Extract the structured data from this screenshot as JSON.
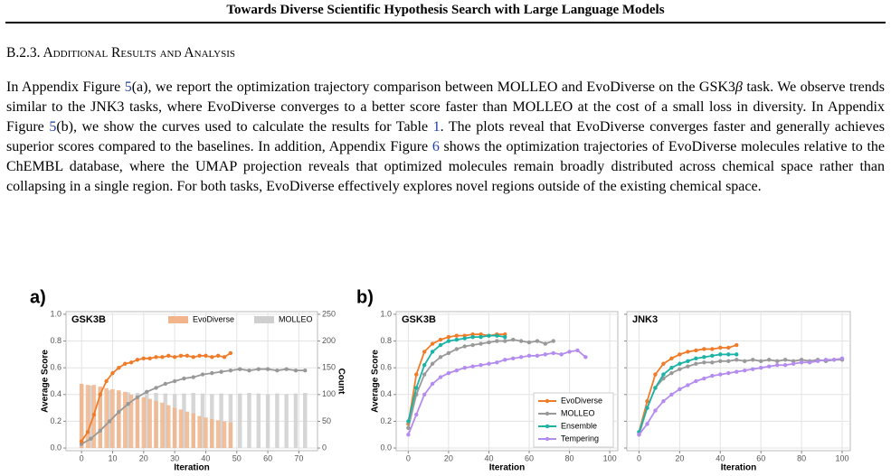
{
  "header": {
    "title": "Towards Diverse Scientific Hypothesis Search with Large Language Models"
  },
  "section": {
    "heading": "B.2.3. Additional Results and Analysis",
    "paragraph": [
      "In Appendix Figure ",
      "5",
      "(a), we report the optimization trajectory comparison between MOLLEO and EvoDiverse on the GSK3",
      "β",
      " task. We observe trends similar to the JNK3 tasks, where EvoDiverse converges to a better score faster than MOLLEO at the cost of a small loss in diversity. In Appendix Figure ",
      "5",
      "(b), we show the curves used to calculate the results for Table ",
      "1",
      ". The plots reveal that EvoDiverse converges faster and generally achieves superior scores compared to the baselines. In addition, Appendix Figure ",
      "6",
      " shows the optimization trajectories of EvoDiverse molecules relative to the ChEMBL database, where the UMAP projection reveals that optimized molecules remain broadly distributed across chemical space rather than collapsing in a single region. For both tasks, EvoDiverse effectively explores novel regions outside of the existing chemical space."
    ]
  },
  "figure": {
    "panel_labels": [
      "a)",
      "b)"
    ]
  },
  "chart_data": [
    {
      "type": "combo",
      "title": "GSK3B",
      "xlabel": "Iteration",
      "ylabel": "Average Score",
      "y2label": "Count",
      "xlim": [
        -5,
        76
      ],
      "xticks": [
        0,
        10,
        20,
        30,
        40,
        50,
        60,
        70
      ],
      "ylim": [
        -0.02,
        1.02
      ],
      "yticks": [
        {
          "value": 0,
          "label": "0.0"
        },
        0.2,
        0.4,
        0.6,
        0.8,
        {
          "value": 1,
          "label": "1.0"
        }
      ],
      "y2lim": [
        -5,
        255
      ],
      "y2ticks": [
        0,
        50,
        100,
        150,
        200,
        250
      ],
      "grid": true,
      "legend": "upper right",
      "series": [
        {
          "name": "EvoDiverse",
          "color": "#f07c2a",
          "bar_color": "#f2b48a",
          "x": [
            0,
            2,
            4,
            6,
            8,
            10,
            12,
            14,
            16,
            18,
            20,
            22,
            24,
            26,
            28,
            30,
            32,
            34,
            36,
            38,
            40,
            42,
            44,
            46,
            48
          ],
          "values": [
            0.05,
            0.12,
            0.25,
            0.4,
            0.5,
            0.56,
            0.6,
            0.63,
            0.64,
            0.66,
            0.67,
            0.67,
            0.68,
            0.68,
            0.69,
            0.68,
            0.69,
            0.69,
            0.68,
            0.69,
            0.69,
            0.68,
            0.69,
            0.68,
            0.71
          ],
          "counts": [
            120,
            118,
            118,
            115,
            112,
            110,
            108,
            105,
            100,
            98,
            95,
            92,
            88,
            85,
            80,
            75,
            72,
            68,
            65,
            60,
            57,
            54,
            52,
            50,
            48
          ]
        },
        {
          "name": "MOLLEO",
          "color": "#999999",
          "bar_color": "#cfcfcf",
          "x": [
            0,
            3,
            6,
            9,
            12,
            15,
            18,
            21,
            24,
            27,
            30,
            33,
            36,
            39,
            42,
            45,
            48,
            51,
            54,
            57,
            60,
            63,
            66,
            69,
            72
          ],
          "values": [
            0.03,
            0.07,
            0.13,
            0.2,
            0.27,
            0.33,
            0.38,
            0.42,
            0.45,
            0.48,
            0.5,
            0.52,
            0.53,
            0.55,
            0.56,
            0.57,
            0.58,
            0.59,
            0.58,
            0.59,
            0.59,
            0.58,
            0.59,
            0.58,
            0.58
          ],
          "counts": [
            120,
            117,
            112,
            108,
            105,
            104,
            103,
            102,
            103,
            102,
            101,
            102,
            103,
            102,
            101,
            102,
            101,
            102,
            103,
            102,
            101,
            102,
            101,
            102,
            103
          ]
        }
      ]
    },
    {
      "type": "line",
      "title": "GSK3B",
      "xlabel": "Iteration",
      "ylabel": "Average Score",
      "xlim": [
        -6,
        104
      ],
      "xticks": [
        0,
        20,
        40,
        60,
        80,
        100
      ],
      "ylim": [
        -0.02,
        1.02
      ],
      "yticks": [
        {
          "value": 0,
          "label": "0.0"
        },
        0.2,
        0.4,
        0.6,
        0.8,
        {
          "value": 1,
          "label": "1.0"
        }
      ],
      "grid": true,
      "legend": "lower right",
      "series": [
        {
          "name": "EvoDiverse",
          "color": "#f07c2a",
          "x": [
            0,
            4,
            8,
            12,
            16,
            20,
            24,
            28,
            32,
            36,
            40,
            44,
            48
          ],
          "values": [
            0.18,
            0.55,
            0.72,
            0.78,
            0.81,
            0.83,
            0.84,
            0.84,
            0.85,
            0.85,
            0.84,
            0.85,
            0.85
          ]
        },
        {
          "name": "MOLLEO",
          "color": "#999999",
          "x": [
            0,
            4,
            8,
            12,
            16,
            20,
            24,
            28,
            32,
            36,
            40,
            44,
            48,
            52,
            56,
            60,
            64,
            68,
            72
          ],
          "values": [
            0.15,
            0.4,
            0.55,
            0.63,
            0.68,
            0.71,
            0.74,
            0.76,
            0.77,
            0.78,
            0.79,
            0.8,
            0.8,
            0.81,
            0.8,
            0.79,
            0.8,
            0.78,
            0.8
          ]
        },
        {
          "name": "Ensemble",
          "color": "#1ab3a6",
          "x": [
            0,
            4,
            8,
            12,
            16,
            20,
            24,
            28,
            32,
            36,
            40,
            44,
            48
          ],
          "values": [
            0.2,
            0.45,
            0.62,
            0.72,
            0.77,
            0.8,
            0.81,
            0.82,
            0.83,
            0.83,
            0.84,
            0.84,
            0.83
          ]
        },
        {
          "name": "Tempering",
          "color": "#b48cf0",
          "x": [
            0,
            4,
            8,
            12,
            16,
            20,
            24,
            28,
            32,
            36,
            40,
            44,
            48,
            52,
            56,
            60,
            64,
            68,
            72,
            76,
            80,
            84,
            88
          ],
          "values": [
            0.1,
            0.25,
            0.4,
            0.48,
            0.53,
            0.56,
            0.58,
            0.6,
            0.61,
            0.62,
            0.63,
            0.64,
            0.66,
            0.67,
            0.68,
            0.69,
            0.69,
            0.7,
            0.71,
            0.7,
            0.72,
            0.73,
            0.68
          ]
        }
      ]
    },
    {
      "type": "line",
      "title": "JNK3",
      "xlabel": "Iteration",
      "xlim": [
        -6,
        104
      ],
      "xticks": [
        0,
        20,
        40,
        60,
        80,
        100
      ],
      "ylim": [
        -0.02,
        1.02
      ],
      "yticks": [
        0,
        0.2,
        0.4,
        0.6,
        0.8,
        1
      ],
      "ytick_labels": false,
      "grid": true,
      "series": [
        {
          "color": "#f07c2a",
          "x": [
            0,
            4,
            8,
            12,
            16,
            20,
            24,
            28,
            32,
            36,
            40,
            44,
            48
          ],
          "values": [
            0.12,
            0.35,
            0.55,
            0.63,
            0.67,
            0.7,
            0.72,
            0.73,
            0.74,
            0.74,
            0.75,
            0.75,
            0.77
          ]
        },
        {
          "color": "#999999",
          "x": [
            0,
            4,
            8,
            12,
            16,
            20,
            24,
            28,
            32,
            36,
            40,
            44,
            48,
            52,
            56,
            60,
            64,
            68,
            72,
            76,
            80,
            84,
            88,
            92,
            96,
            100
          ],
          "values": [
            0.1,
            0.3,
            0.45,
            0.52,
            0.56,
            0.59,
            0.61,
            0.63,
            0.64,
            0.64,
            0.65,
            0.65,
            0.66,
            0.65,
            0.66,
            0.65,
            0.66,
            0.65,
            0.66,
            0.65,
            0.66,
            0.65,
            0.66,
            0.65,
            0.66,
            0.66
          ]
        },
        {
          "color": "#1ab3a6",
          "x": [
            0,
            4,
            8,
            12,
            16,
            20,
            24,
            28,
            32,
            36,
            40,
            44,
            48
          ],
          "values": [
            0.12,
            0.3,
            0.45,
            0.55,
            0.6,
            0.63,
            0.65,
            0.67,
            0.68,
            0.69,
            0.7,
            0.7,
            0.7
          ]
        },
        {
          "color": "#b48cf0",
          "x": [
            0,
            4,
            8,
            12,
            16,
            20,
            24,
            28,
            32,
            36,
            40,
            44,
            48,
            52,
            56,
            60,
            64,
            68,
            72,
            76,
            80,
            84,
            88,
            92,
            96,
            100
          ],
          "values": [
            0.1,
            0.18,
            0.28,
            0.35,
            0.4,
            0.44,
            0.47,
            0.5,
            0.52,
            0.54,
            0.55,
            0.56,
            0.57,
            0.58,
            0.59,
            0.6,
            0.61,
            0.62,
            0.62,
            0.63,
            0.64,
            0.64,
            0.65,
            0.66,
            0.66,
            0.67
          ]
        }
      ]
    }
  ]
}
